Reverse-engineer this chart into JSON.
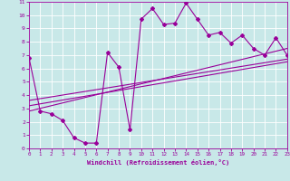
{
  "xlabel": "Windchill (Refroidissement éolien,°C)",
  "xlim": [
    0,
    23
  ],
  "ylim": [
    0,
    11
  ],
  "xticks": [
    0,
    1,
    2,
    3,
    4,
    5,
    6,
    7,
    8,
    9,
    10,
    11,
    12,
    13,
    14,
    15,
    16,
    17,
    18,
    19,
    20,
    21,
    22,
    23
  ],
  "yticks": [
    0,
    1,
    2,
    3,
    4,
    5,
    6,
    7,
    8,
    9,
    10,
    11
  ],
  "bg_color": "#c8e8e8",
  "line_color": "#990099",
  "line1_x": [
    0,
    1,
    2,
    3,
    4,
    5,
    6,
    7,
    8,
    9,
    10,
    11,
    12,
    13,
    14,
    15,
    16,
    17,
    18,
    19,
    20,
    21,
    22,
    23
  ],
  "line1_y": [
    6.8,
    2.8,
    2.6,
    2.1,
    0.8,
    0.4,
    0.4,
    7.2,
    6.1,
    1.4,
    9.7,
    10.5,
    9.3,
    9.4,
    10.9,
    9.7,
    8.5,
    8.7,
    7.9,
    8.5,
    7.5,
    7.0,
    8.3,
    7.0
  ],
  "line2_x": [
    0,
    23
  ],
  "line2_y": [
    2.8,
    7.5
  ],
  "line3_x": [
    0,
    23
  ],
  "line3_y": [
    3.2,
    6.5
  ],
  "line4_x": [
    0,
    23
  ],
  "line4_y": [
    3.6,
    6.7
  ]
}
